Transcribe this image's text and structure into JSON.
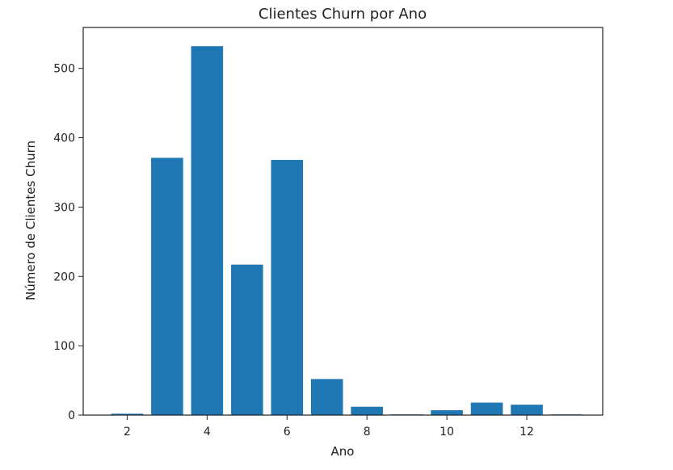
{
  "colors": {
    "bar": "#1f77b4",
    "axis": "#222222",
    "background": "#ffffff"
  },
  "chart_data": {
    "type": "bar",
    "title": "Clientes Churn por Ano",
    "xlabel": "Ano",
    "ylabel": "Número de Clientes Churn",
    "x": [
      2,
      3,
      4,
      5,
      6,
      7,
      8,
      9,
      10,
      11,
      12,
      13
    ],
    "values": [
      2,
      371,
      532,
      217,
      368,
      52,
      12,
      1,
      7,
      18,
      15,
      1
    ],
    "xlim": [
      0.9,
      13.9
    ],
    "ylim": [
      0,
      559
    ],
    "xticks": [
      2,
      4,
      6,
      8,
      10,
      12
    ],
    "yticks": [
      0,
      100,
      200,
      300,
      400,
      500
    ],
    "bar_width": 0.8,
    "grid": false,
    "legend": false
  }
}
